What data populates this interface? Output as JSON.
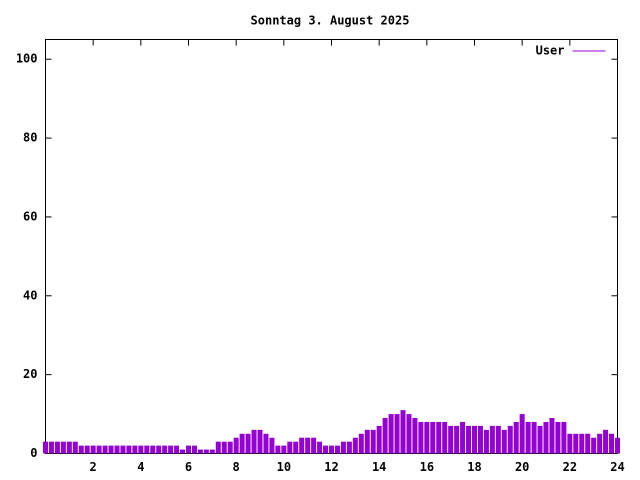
{
  "chart_data": {
    "type": "impulses",
    "title": "Sonntag 3. August 2025",
    "x": [
      0,
      0.25,
      0.5,
      0.75,
      1,
      1.25,
      1.5,
      1.75,
      2,
      2.25,
      2.5,
      2.75,
      3,
      3.25,
      3.5,
      3.75,
      4,
      4.25,
      4.5,
      4.75,
      5,
      5.25,
      5.5,
      5.75,
      6,
      6.25,
      6.5,
      6.75,
      7,
      7.25,
      7.5,
      7.75,
      8,
      8.25,
      8.5,
      8.75,
      9,
      9.25,
      9.5,
      9.75,
      10,
      10.25,
      10.5,
      10.75,
      11,
      11.25,
      11.5,
      11.75,
      12,
      12.25,
      12.5,
      12.75,
      13,
      13.25,
      13.5,
      13.75,
      14,
      14.25,
      14.5,
      14.75,
      15,
      15.25,
      15.5,
      15.75,
      16,
      16.25,
      16.5,
      16.75,
      17,
      17.25,
      17.5,
      17.75,
      18,
      18.25,
      18.5,
      18.75,
      19,
      19.25,
      19.5,
      19.75,
      20,
      20.25,
      20.5,
      20.75,
      21,
      21.25,
      21.5,
      21.75,
      22,
      22.25,
      22.5,
      22.75,
      23,
      23.25,
      23.5,
      23.75,
      24
    ],
    "series": [
      {
        "name": "User",
        "color": "#9400d3",
        "values": [
          3,
          3,
          3,
          3,
          3,
          3,
          2,
          2,
          2,
          2,
          2,
          2,
          2,
          2,
          2,
          2,
          2,
          2,
          2,
          2,
          2,
          2,
          2,
          1,
          2,
          2,
          1,
          1,
          1,
          3,
          3,
          3,
          4,
          5,
          5,
          6,
          6,
          5,
          4,
          2,
          2,
          3,
          3,
          4,
          4,
          4,
          3,
          2,
          2,
          2,
          3,
          3,
          4,
          5,
          6,
          6,
          7,
          9,
          10,
          10,
          11,
          10,
          9,
          8,
          8,
          8,
          8,
          8,
          7,
          7,
          8,
          7,
          7,
          7,
          6,
          7,
          7,
          6,
          7,
          8,
          10,
          8,
          8,
          7,
          8,
          9,
          8,
          8,
          5,
          5,
          5,
          5,
          4,
          5,
          6,
          5,
          4
        ]
      }
    ],
    "xlim": [
      0,
      24
    ],
    "xticks": [
      2,
      4,
      6,
      8,
      10,
      12,
      14,
      16,
      18,
      20,
      22,
      24
    ],
    "ylim": [
      0,
      105
    ],
    "yticks": [
      0,
      20,
      40,
      60,
      80,
      100
    ],
    "legend": "top-right"
  }
}
